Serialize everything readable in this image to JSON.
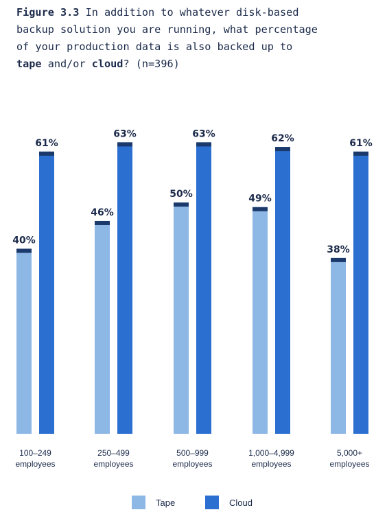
{
  "title": {
    "figure": "Figure 3.3",
    "line1_rest": " In addition to whatever disk-based",
    "line2": "backup solution you are running, what percentage",
    "line3": "of your production data is also backed up to",
    "line4_tape": "tape",
    "line4_and": " and/or ",
    "line4_cloud": "cloud",
    "line4_rest": "? (n=396)"
  },
  "colors": {
    "tape": "#8db7e5",
    "cloud": "#2b6fd1",
    "cap": "#1b3a6b",
    "text": "#1b2a4a"
  },
  "chart_data": {
    "type": "bar",
    "categories": [
      [
        "100–249",
        "employees"
      ],
      [
        "250–499",
        "employees"
      ],
      [
        "500–999",
        "employees"
      ],
      [
        "1,000–4,999",
        "employees"
      ],
      [
        "5,000+",
        "employees"
      ]
    ],
    "series": [
      {
        "name": "Tape",
        "values": [
          40,
          46,
          50,
          49,
          38
        ],
        "labels": [
          "40%",
          "46%",
          "50%",
          "49%",
          "38%"
        ]
      },
      {
        "name": "Cloud",
        "values": [
          61,
          63,
          63,
          62,
          61
        ],
        "labels": [
          "61%",
          "63%",
          "63%",
          "62%",
          "61%"
        ]
      }
    ],
    "ylim": [
      0,
      100
    ],
    "legend_position": "bottom-center",
    "grid": false
  }
}
